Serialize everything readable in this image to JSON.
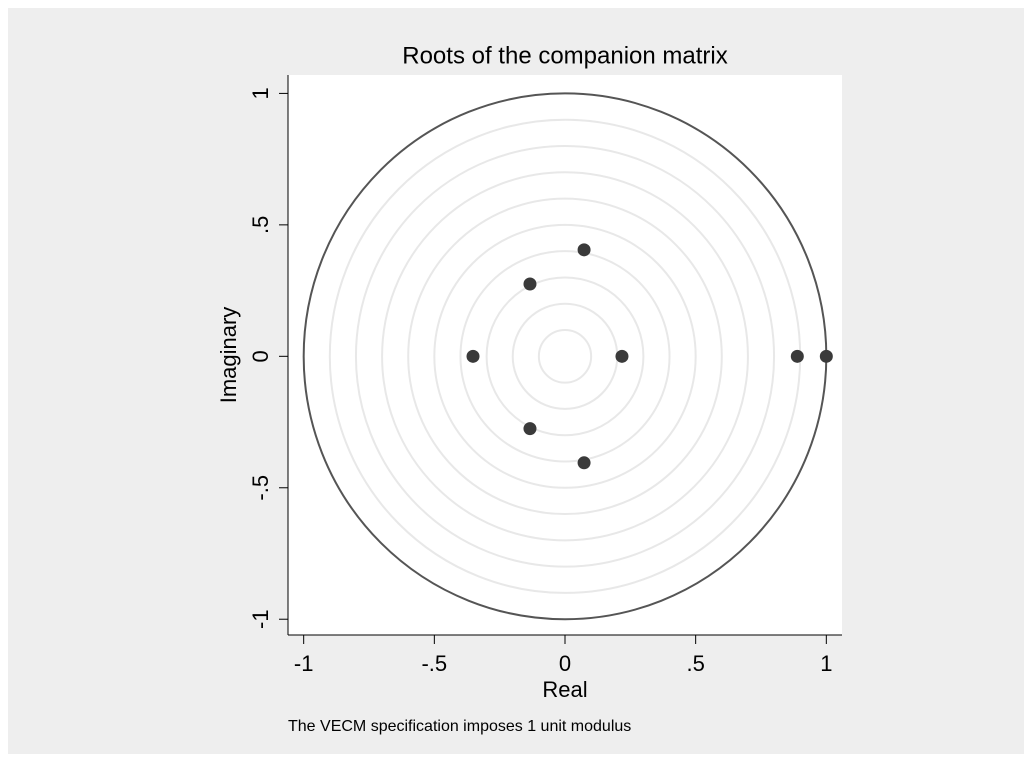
{
  "chart_data": {
    "type": "scatter",
    "title": "Roots of the companion matrix",
    "x_label": "Real",
    "y_label": "Imaginary",
    "note": "The VECM specification imposes 1 unit modulus",
    "x": [
      0.073,
      0.073,
      -0.134,
      -0.134,
      -0.352,
      0.218,
      0.889,
      1
    ],
    "values": [
      0.405,
      -0.405,
      0.275,
      -0.275,
      0,
      0,
      0,
      0
    ],
    "color": "#3a3a3a",
    "xlim": [
      -1.06,
      1.06
    ],
    "ylim": [
      -1.06,
      1.07
    ],
    "xticks": [
      -1,
      {
        "value": -0.5,
        "label": "-.5"
      },
      0,
      {
        "value": 0.5,
        "label": ".5"
      },
      1
    ],
    "yticks": [
      -1,
      {
        "value": -0.5,
        "label": "-.5"
      },
      0,
      {
        "value": 0.5,
        "label": ".5"
      },
      1
    ],
    "grid": true,
    "unit_circle": true
  }
}
